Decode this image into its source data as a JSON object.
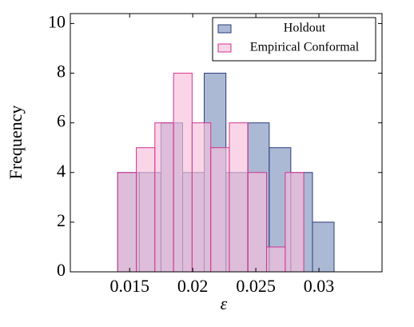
{
  "chart_data": {
    "type": "histogram",
    "xlabel": "ε",
    "ylabel": "Frequency",
    "series": [
      {
        "name": "Holdout",
        "color": "#7f93bf",
        "edge_color": "#2c3c7c",
        "bins": [
          0.01405,
          0.01577,
          0.01748,
          0.0192,
          0.02091,
          0.02263,
          0.02434,
          0.02606,
          0.02777,
          0.02949,
          0.0312
        ],
        "values": [
          4,
          4,
          6,
          4,
          8,
          4,
          6,
          5,
          4,
          2
        ]
      },
      {
        "name": "Empirical Conformal",
        "color": "#f7bfdc",
        "edge_color": "#d0358e",
        "bins": [
          0.01405,
          0.01553,
          0.017,
          0.01848,
          0.01995,
          0.02143,
          0.0229,
          0.02438,
          0.02585,
          0.02733,
          0.0288
        ],
        "values": [
          4,
          5,
          6,
          8,
          6,
          5,
          6,
          4,
          1,
          4
        ]
      }
    ],
    "xlim": [
      0.0103,
      0.035
    ],
    "ylim": [
      0,
      10.4
    ],
    "xticks": [
      0.015,
      0.02,
      0.025,
      0.03
    ],
    "yticks": [
      0,
      2,
      4,
      6,
      8,
      10
    ],
    "legend": "upper right"
  }
}
